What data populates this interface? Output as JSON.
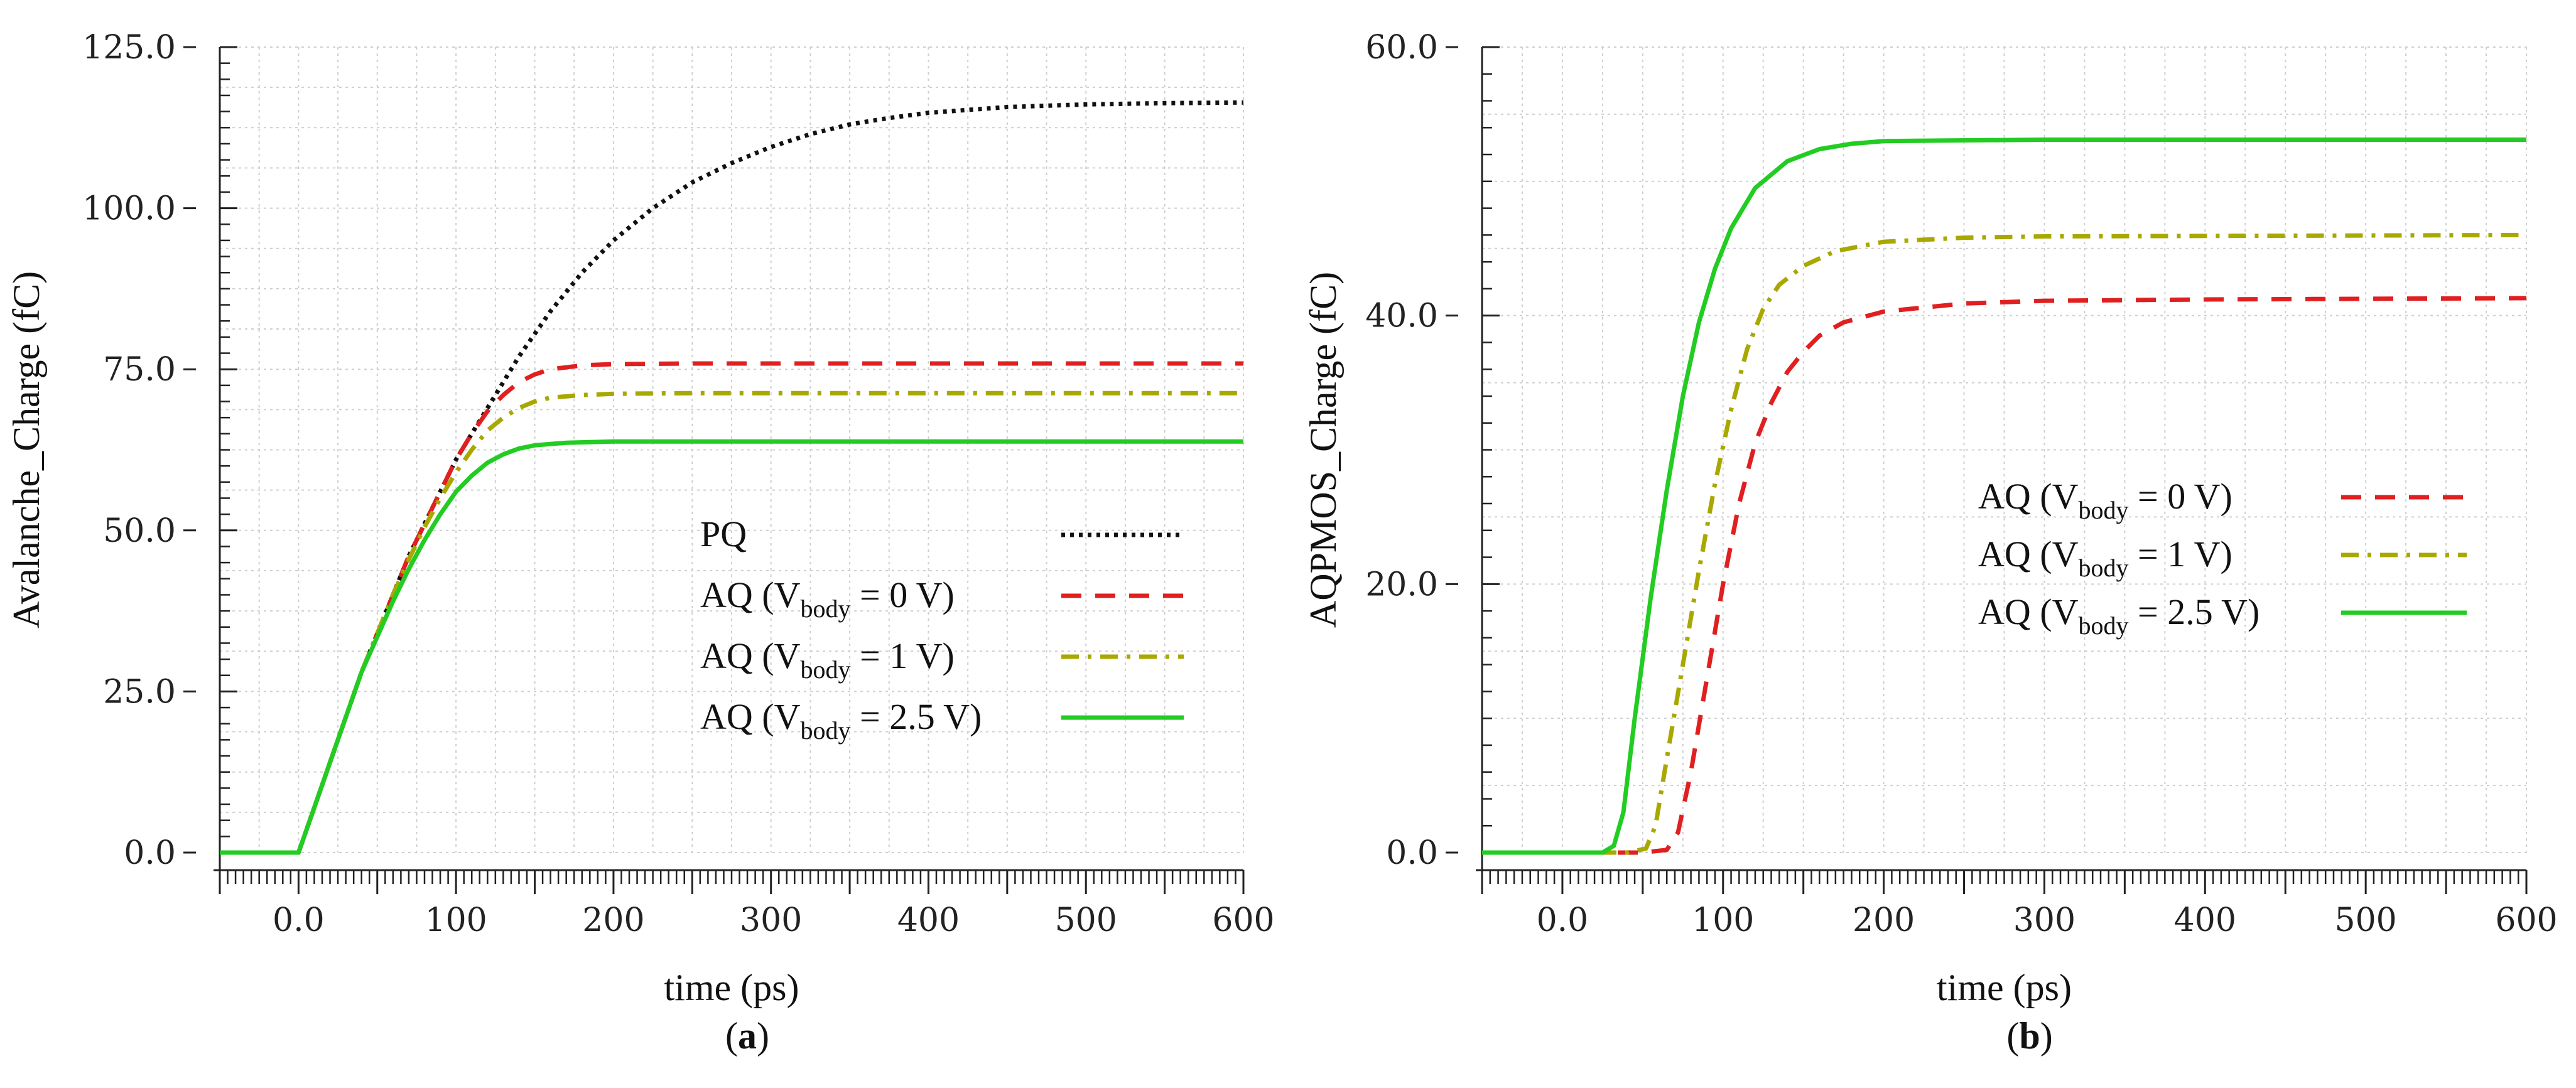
{
  "colors": {
    "pq": "#111111",
    "aq_vbody_0": "#e02020",
    "aq_vbody_1": "#a8a800",
    "aq_vbody_2_5": "#22cc22"
  },
  "chart_data": [
    {
      "id": "a",
      "type": "line",
      "panel_label": "a",
      "xlabel": "time (ps)",
      "ylabel": "Avalanche_Charge (fC)",
      "xlim": [
        -50,
        600
      ],
      "ylim": [
        0,
        125
      ],
      "x_ticks": [
        0,
        100,
        200,
        300,
        400,
        500,
        600
      ],
      "x_tick_labels": [
        "0.0",
        "100",
        "200",
        "300",
        "400",
        "500",
        "600"
      ],
      "y_ticks": [
        0,
        25,
        50,
        75,
        100,
        125
      ],
      "y_tick_labels": [
        "0.0",
        "25.0",
        "50.0",
        "75.0",
        "100.0",
        "125.0"
      ],
      "grid": true,
      "legend_position": "center-right",
      "series": [
        {
          "key": "pq",
          "label_main": "PQ",
          "label_sub": "",
          "label_rest": "",
          "style": "dotted",
          "color_key": "pq",
          "points": [
            [
              -50,
              0
            ],
            [
              0,
              0
            ],
            [
              10,
              7
            ],
            [
              20,
              14
            ],
            [
              30,
              21
            ],
            [
              40,
              28
            ],
            [
              50,
              34
            ],
            [
              60,
              40
            ],
            [
              70,
              46
            ],
            [
              80,
              51
            ],
            [
              90,
              56
            ],
            [
              100,
              61
            ],
            [
              120,
              69
            ],
            [
              140,
              77
            ],
            [
              160,
              84
            ],
            [
              180,
              90
            ],
            [
              200,
              95
            ],
            [
              225,
              100
            ],
            [
              250,
              104
            ],
            [
              275,
              107
            ],
            [
              300,
              109.5
            ],
            [
              325,
              111.5
            ],
            [
              350,
              113
            ],
            [
              375,
              114
            ],
            [
              400,
              114.8
            ],
            [
              450,
              115.7
            ],
            [
              500,
              116.1
            ],
            [
              550,
              116.3
            ],
            [
              600,
              116.4
            ]
          ]
        },
        {
          "key": "aq0",
          "label_main": "AQ (V",
          "label_sub": "body",
          "label_rest": " = 0 V)",
          "style": "dashed",
          "color_key": "aq_vbody_0",
          "points": [
            [
              -50,
              0
            ],
            [
              0,
              0
            ],
            [
              10,
              7
            ],
            [
              20,
              14
            ],
            [
              30,
              21
            ],
            [
              40,
              28
            ],
            [
              50,
              34
            ],
            [
              60,
              40
            ],
            [
              70,
              46
            ],
            [
              80,
              51
            ],
            [
              90,
              56
            ],
            [
              100,
              61
            ],
            [
              110,
              65
            ],
            [
              120,
              68.5
            ],
            [
              130,
              71
            ],
            [
              140,
              73
            ],
            [
              150,
              74.2
            ],
            [
              160,
              75
            ],
            [
              180,
              75.6
            ],
            [
              200,
              75.8
            ],
            [
              250,
              75.9
            ],
            [
              600,
              75.9
            ]
          ]
        },
        {
          "key": "aq1",
          "label_main": "AQ (V",
          "label_sub": "body",
          "label_rest": " = 1 V)",
          "style": "dashdot",
          "color_key": "aq_vbody_1",
          "points": [
            [
              -50,
              0
            ],
            [
              0,
              0
            ],
            [
              10,
              7
            ],
            [
              20,
              14
            ],
            [
              30,
              21
            ],
            [
              40,
              28
            ],
            [
              50,
              34
            ],
            [
              60,
              40
            ],
            [
              70,
              45.5
            ],
            [
              80,
              50.5
            ],
            [
              90,
              55
            ],
            [
              100,
              59
            ],
            [
              110,
              62.5
            ],
            [
              120,
              65.5
            ],
            [
              130,
              67.5
            ],
            [
              140,
              69
            ],
            [
              150,
              70
            ],
            [
              160,
              70.6
            ],
            [
              180,
              71
            ],
            [
              200,
              71.2
            ],
            [
              250,
              71.3
            ],
            [
              600,
              71.3
            ]
          ]
        },
        {
          "key": "aq25",
          "label_main": "AQ (V",
          "label_sub": "body",
          "label_rest": " = 2.5 V)",
          "style": "solid",
          "color_key": "aq_vbody_2_5",
          "points": [
            [
              -50,
              0
            ],
            [
              0,
              0
            ],
            [
              10,
              7
            ],
            [
              20,
              14
            ],
            [
              30,
              21
            ],
            [
              40,
              28
            ],
            [
              50,
              33.5
            ],
            [
              60,
              39
            ],
            [
              70,
              44
            ],
            [
              80,
              48.5
            ],
            [
              90,
              52.5
            ],
            [
              100,
              56
            ],
            [
              110,
              58.5
            ],
            [
              120,
              60.5
            ],
            [
              130,
              61.8
            ],
            [
              140,
              62.7
            ],
            [
              150,
              63.2
            ],
            [
              170,
              63.6
            ],
            [
              200,
              63.8
            ],
            [
              250,
              63.8
            ],
            [
              600,
              63.8
            ]
          ]
        }
      ]
    },
    {
      "id": "b",
      "type": "line",
      "panel_label": "b",
      "xlabel": "time (ps)",
      "ylabel": "AQPMOS_Charge (fC)",
      "xlim": [
        -50,
        600
      ],
      "ylim": [
        0,
        60
      ],
      "x_ticks": [
        0,
        100,
        200,
        300,
        400,
        500,
        600
      ],
      "x_tick_labels": [
        "0.0",
        "100",
        "200",
        "300",
        "400",
        "500",
        "600"
      ],
      "y_ticks": [
        0,
        20,
        40,
        60
      ],
      "y_tick_labels": [
        "0.0",
        "20.0",
        "40.0",
        "60.0"
      ],
      "grid": true,
      "legend_position": "center-right",
      "series": [
        {
          "key": "aq0",
          "label_main": "AQ (V",
          "label_sub": "body",
          "label_rest": " = 0 V)",
          "style": "dashed",
          "color_key": "aq_vbody_0",
          "points": [
            [
              -50,
              0
            ],
            [
              50,
              0
            ],
            [
              65,
              0.2
            ],
            [
              72,
              1.5
            ],
            [
              80,
              6
            ],
            [
              90,
              13
            ],
            [
              100,
              20
            ],
            [
              110,
              26
            ],
            [
              120,
              30.5
            ],
            [
              130,
              33.5
            ],
            [
              140,
              35.8
            ],
            [
              150,
              37.3
            ],
            [
              160,
              38.5
            ],
            [
              175,
              39.5
            ],
            [
              200,
              40.3
            ],
            [
              250,
              40.9
            ],
            [
              300,
              41.1
            ],
            [
              400,
              41.2
            ],
            [
              600,
              41.3
            ]
          ]
        },
        {
          "key": "aq1",
          "label_main": "AQ (V",
          "label_sub": "body",
          "label_rest": " = 1 V)",
          "style": "dashdot",
          "color_key": "aq_vbody_1",
          "points": [
            [
              -50,
              0
            ],
            [
              40,
              0
            ],
            [
              52,
              0.3
            ],
            [
              58,
              2
            ],
            [
              65,
              7
            ],
            [
              75,
              14
            ],
            [
              85,
              21
            ],
            [
              95,
              27.5
            ],
            [
              105,
              33
            ],
            [
              115,
              37.5
            ],
            [
              125,
              40.5
            ],
            [
              135,
              42.3
            ],
            [
              150,
              43.7
            ],
            [
              170,
              44.8
            ],
            [
              200,
              45.5
            ],
            [
              250,
              45.8
            ],
            [
              300,
              45.9
            ],
            [
              600,
              46
            ]
          ]
        },
        {
          "key": "aq25",
          "label_main": "AQ (V",
          "label_sub": "body",
          "label_rest": " = 2.5 V)",
          "style": "solid",
          "color_key": "aq_vbody_2_5",
          "points": [
            [
              -50,
              0
            ],
            [
              25,
              0
            ],
            [
              32,
              0.5
            ],
            [
              38,
              3
            ],
            [
              45,
              10
            ],
            [
              55,
              19
            ],
            [
              65,
              27
            ],
            [
              75,
              34
            ],
            [
              85,
              39.5
            ],
            [
              95,
              43.5
            ],
            [
              105,
              46.5
            ],
            [
              120,
              49.5
            ],
            [
              140,
              51.5
            ],
            [
              160,
              52.4
            ],
            [
              180,
              52.8
            ],
            [
              200,
              53
            ],
            [
              300,
              53.1
            ],
            [
              600,
              53.1
            ]
          ]
        }
      ]
    }
  ]
}
